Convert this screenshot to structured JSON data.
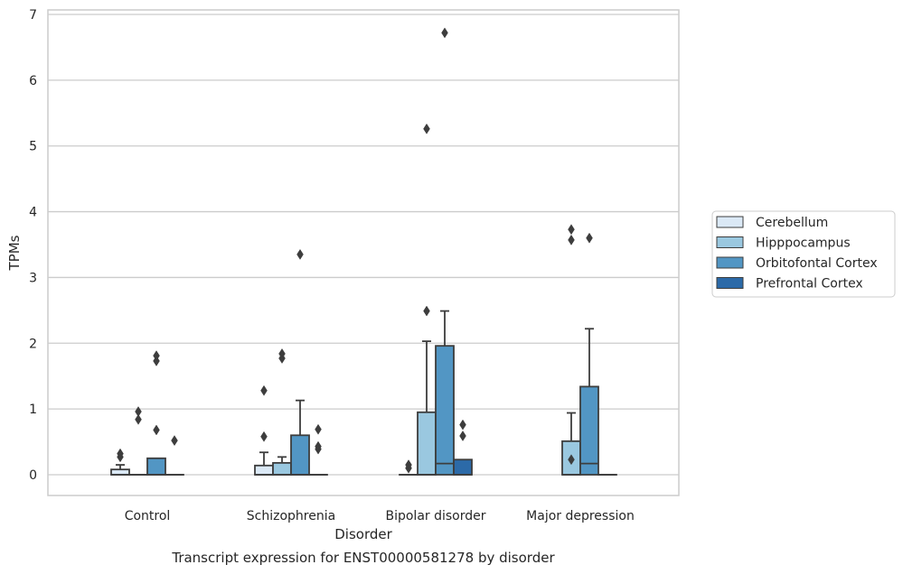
{
  "chart_data": {
    "type": "boxplot",
    "caption": "Transcript expression for ENST00000581278 by disorder",
    "xlabel": "Disorder",
    "ylabel": "TPMs",
    "ylim": [
      -0.32,
      7.05
    ],
    "yticks": [
      0,
      1,
      2,
      3,
      4,
      5,
      6,
      7
    ],
    "grid": "horizontal",
    "legend_position": "right",
    "categories": [
      "Control",
      "Schizophrenia",
      "Bipolar disorder",
      "Major depression"
    ],
    "series": [
      {
        "name": "Cerebellum",
        "color": "#dbe9f6",
        "boxes": [
          {
            "q1": 0,
            "median": 0,
            "q3": 0.08,
            "whisker_low": 0,
            "whisker_high": 0.15,
            "outliers": [
              0.27,
              0.32
            ]
          },
          {
            "q1": 0,
            "median": 0,
            "q3": 0.14,
            "whisker_low": 0,
            "whisker_high": 0.34,
            "outliers": [
              0.58,
              1.28
            ]
          },
          {
            "q1": 0,
            "median": 0,
            "q3": 0,
            "whisker_low": 0,
            "whisker_high": 0,
            "outliers": [
              0.1,
              0.15
            ]
          },
          null
        ]
      },
      {
        "name": "Hipppocampus",
        "color": "#9ac8e0",
        "boxes": [
          {
            "q1": 0,
            "median": 0,
            "q3": 0,
            "whisker_low": 0,
            "whisker_high": 0,
            "outliers": [
              0.84,
              0.96
            ]
          },
          {
            "q1": 0,
            "median": 0,
            "q3": 0.18,
            "whisker_low": 0,
            "whisker_high": 0.27,
            "outliers": [
              1.77,
              1.84
            ]
          },
          {
            "q1": 0,
            "median": 0,
            "q3": 0.95,
            "whisker_low": 0,
            "whisker_high": 2.03,
            "outliers": [
              2.49,
              5.26
            ]
          },
          {
            "q1": 0,
            "median": 0,
            "q3": 0.51,
            "whisker_low": 0,
            "whisker_high": 0.94,
            "outliers": [
              0.23,
              3.57,
              3.73
            ]
          }
        ]
      },
      {
        "name": "Orbitofontal Cortex",
        "color": "#5296c4",
        "boxes": [
          {
            "q1": 0,
            "median": 0,
            "q3": 0.25,
            "whisker_low": 0,
            "whisker_high": 0.25,
            "outliers": [
              0.68,
              1.73,
              1.81
            ]
          },
          {
            "q1": 0,
            "median": 0,
            "q3": 0.6,
            "whisker_low": 0,
            "whisker_high": 1.13,
            "outliers": [
              3.35
            ]
          },
          {
            "q1": 0,
            "median": 0.17,
            "q3": 1.96,
            "whisker_low": 0,
            "whisker_high": 2.49,
            "outliers": [
              6.72
            ]
          },
          {
            "q1": 0,
            "median": 0.17,
            "q3": 1.34,
            "whisker_low": 0,
            "whisker_high": 2.22,
            "outliers": [
              3.6
            ]
          }
        ]
      },
      {
        "name": "Prefrontal Cortex",
        "color": "#2c6aa8",
        "boxes": [
          {
            "q1": 0,
            "median": 0,
            "q3": 0,
            "whisker_low": 0,
            "whisker_high": 0,
            "outliers": [
              0.52
            ]
          },
          {
            "q1": 0,
            "median": 0,
            "q3": 0,
            "whisker_low": 0,
            "whisker_high": 0,
            "outliers": [
              0.39,
              0.43,
              0.69
            ]
          },
          {
            "q1": 0,
            "median": 0,
            "q3": 0.23,
            "whisker_low": 0,
            "whisker_high": 0.23,
            "outliers": [
              0.59,
              0.76
            ]
          },
          {
            "q1": 0,
            "median": 0,
            "q3": 0,
            "whisker_low": 0,
            "whisker_high": 0,
            "outliers": []
          }
        ]
      }
    ]
  }
}
